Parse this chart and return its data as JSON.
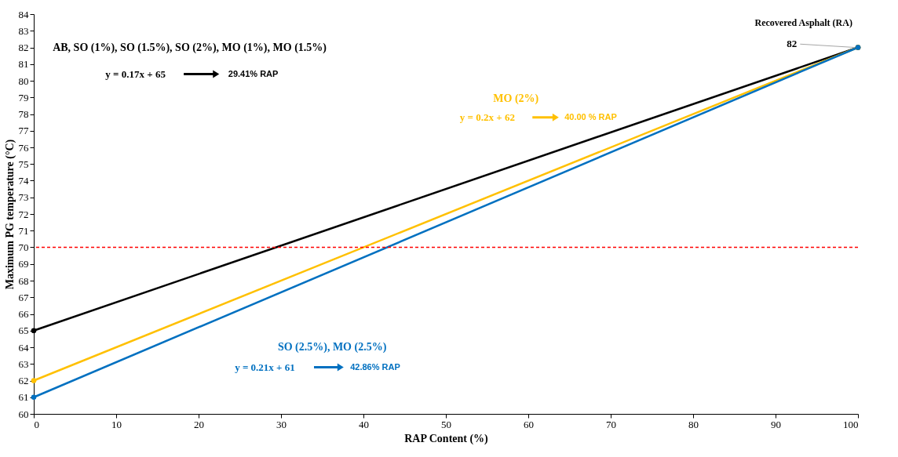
{
  "chart_data": {
    "type": "line",
    "xlabel": "RAP Content (%)",
    "ylabel": "Maximum PG temperature (°C)",
    "xlim": [
      0,
      100
    ],
    "xticks": [
      0,
      10,
      20,
      30,
      40,
      50,
      60,
      70,
      80,
      90,
      100
    ],
    "ylim": [
      60,
      84
    ],
    "yticks": [
      60,
      61,
      62,
      63,
      64,
      65,
      66,
      67,
      68,
      69,
      70,
      71,
      72,
      73,
      74,
      75,
      76,
      77,
      78,
      79,
      80,
      81,
      82,
      83,
      84
    ],
    "series": [
      {
        "color": "#000000",
        "values": [
          65,
          82
        ]
      },
      {
        "color": "#ffc000",
        "values": [
          62,
          82
        ]
      },
      {
        "color": "#0070c0",
        "values": [
          61,
          82
        ]
      }
    ],
    "x": [
      0,
      100
    ],
    "marker": "circle",
    "line_style": "solid",
    "grid": false,
    "legend": false,
    "ref_lines": [
      {
        "axis": "y",
        "value": 70,
        "color": "#ff0000",
        "line_style": "dashed"
      }
    ],
    "annotations": [
      "AB, SO (1%), SO (1.5%), SO (2%), MO (1%), MO (1.5%)",
      "y = 0.17x + 65",
      "29.41% RAP",
      "MO (2%)",
      "y = 0.2x + 62",
      "40.00 % RAP",
      "SO (2.5%), MO (2.5%)",
      "y = 0.21x + 61",
      "42.86% RAP",
      "Recovered Asphalt (RA)",
      {
        "text": "82",
        "x": 100,
        "y": 82
      }
    ]
  }
}
